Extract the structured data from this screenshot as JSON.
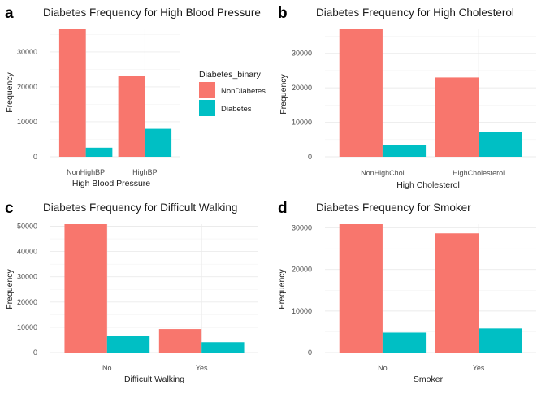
{
  "colors": {
    "NonDiabetes": "#F8766D",
    "Diabetes": "#00BFC4"
  },
  "legend": {
    "title": "Diabetes_binary",
    "items": [
      {
        "label": "NonDiabetes",
        "color": "#F8766D"
      },
      {
        "label": "Diabetes",
        "color": "#00BFC4"
      }
    ]
  },
  "panels": [
    {
      "letter": "a"
    },
    {
      "letter": "b"
    },
    {
      "letter": "c"
    },
    {
      "letter": "d"
    }
  ],
  "chart_data": [
    {
      "type": "bar",
      "title": "Diabetes Frequency for High Blood Pressure",
      "categories": [
        "NonHighBP",
        "HighBP"
      ],
      "series": [
        {
          "name": "NonDiabetes",
          "values": [
            36500,
            23200
          ]
        },
        {
          "name": "Diabetes",
          "values": [
            2600,
            8000
          ]
        }
      ],
      "xlabel": "High Blood Pressure",
      "ylabel": "Frequency",
      "ylim": [
        0,
        36500
      ],
      "yticks": [
        0,
        10000,
        20000,
        30000
      ],
      "grid": true,
      "legend": "right"
    },
    {
      "type": "bar",
      "title": "Diabetes Frequency for High Cholesterol",
      "categories": [
        "NonHighChol",
        "HighCholesterol"
      ],
      "series": [
        {
          "name": "NonDiabetes",
          "values": [
            37000,
            23000
          ]
        },
        {
          "name": "Diabetes",
          "values": [
            3300,
            7200
          ]
        }
      ],
      "xlabel": "High Cholesterol",
      "ylabel": "Frequency",
      "ylim": [
        0,
        37000
      ],
      "yticks": [
        0,
        10000,
        20000,
        30000
      ],
      "grid": true
    },
    {
      "type": "bar",
      "title": "Diabetes Frequency for Difficult Walking",
      "categories": [
        "No",
        "Yes"
      ],
      "series": [
        {
          "name": "NonDiabetes",
          "values": [
            50800,
            9300
          ]
        },
        {
          "name": "Diabetes",
          "values": [
            6500,
            4100
          ]
        }
      ],
      "xlabel": "Difficult Walking",
      "ylabel": "Frequency",
      "ylim": [
        0,
        50800
      ],
      "yticks": [
        0,
        10000,
        20000,
        30000,
        40000,
        50000
      ],
      "grid": true
    },
    {
      "type": "bar",
      "title": "Diabetes Frequency for Smoker",
      "categories": [
        "No",
        "Yes"
      ],
      "series": [
        {
          "name": "NonDiabetes",
          "values": [
            30900,
            28700
          ]
        },
        {
          "name": "Diabetes",
          "values": [
            4800,
            5800
          ]
        }
      ],
      "xlabel": "Smoker",
      "ylabel": "Frequency",
      "ylim": [
        0,
        30900
      ],
      "yticks": [
        0,
        10000,
        20000,
        30000
      ],
      "grid": true
    }
  ]
}
